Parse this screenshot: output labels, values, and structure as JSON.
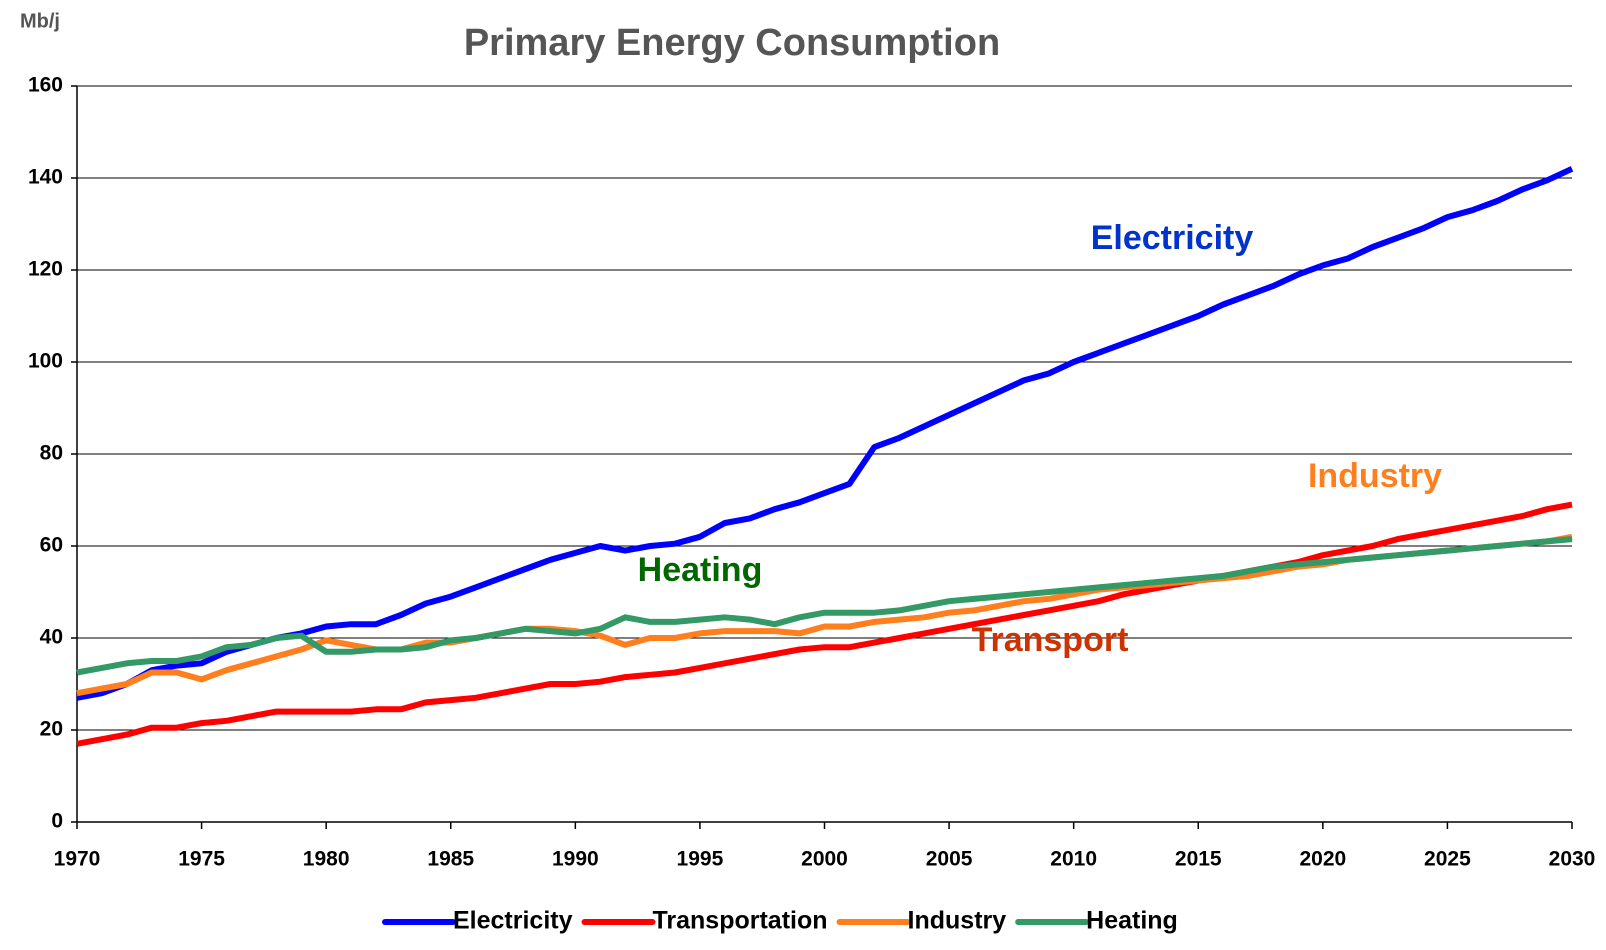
{
  "chart_data": {
    "type": "line",
    "title": "Primary Energy Consumption",
    "y_label": "Mb/j",
    "x": [
      1970,
      1971,
      1972,
      1973,
      1974,
      1975,
      1976,
      1977,
      1978,
      1979,
      1980,
      1981,
      1982,
      1983,
      1984,
      1985,
      1986,
      1987,
      1988,
      1989,
      1990,
      1991,
      1992,
      1993,
      1994,
      1995,
      1996,
      1997,
      1998,
      1999,
      2000,
      2001,
      2002,
      2003,
      2004,
      2005,
      2006,
      2007,
      2008,
      2009,
      2010,
      2011,
      2012,
      2013,
      2014,
      2015,
      2016,
      2017,
      2018,
      2019,
      2020,
      2021,
      2022,
      2023,
      2024,
      2025,
      2026,
      2027,
      2028,
      2029,
      2030
    ],
    "series": [
      {
        "name": "Electricity",
        "color": "#0000ff",
        "values": [
          27,
          28,
          30,
          33,
          34,
          34.5,
          37,
          38.5,
          40,
          41,
          42.5,
          43,
          43,
          45,
          47.5,
          49,
          51,
          53,
          55,
          57,
          58.5,
          60,
          59,
          60,
          60.5,
          62,
          65,
          66,
          68,
          69.5,
          71.5,
          73.5,
          81.5,
          83.5,
          86,
          88.5,
          91,
          93.5,
          96,
          97.5,
          100,
          102,
          104,
          106,
          108,
          110,
          112.5,
          114.5,
          116.5,
          119,
          121,
          122.5,
          125,
          127,
          129,
          131.5,
          133,
          135,
          137.5,
          139.5,
          142
        ]
      },
      {
        "name": "Transportation",
        "color": "#ff0000",
        "values": [
          17,
          18,
          19,
          20.5,
          20.5,
          21.5,
          22,
          23,
          24,
          24,
          24,
          24,
          24.5,
          24.5,
          26,
          26.5,
          27,
          28,
          29,
          30,
          30,
          30.5,
          31.5,
          32,
          32.5,
          33.5,
          34.5,
          35.5,
          36.5,
          37.5,
          38,
          38,
          39,
          40,
          41,
          42,
          43,
          44,
          45,
          46,
          47,
          48,
          49.5,
          50.5,
          51.5,
          52.5,
          53.5,
          54.5,
          55.5,
          56.5,
          58,
          59,
          60,
          61.5,
          62.5,
          63.5,
          64.5,
          65.5,
          66.5,
          68,
          69
        ]
      },
      {
        "name": "Industry",
        "color": "#ff7f1f",
        "values": [
          28,
          29,
          30,
          32.5,
          32.5,
          31,
          33,
          34.5,
          36,
          37.5,
          39.5,
          38.5,
          37.5,
          37.5,
          39,
          39,
          40,
          41,
          42,
          42,
          41.5,
          40.5,
          38.5,
          40,
          40,
          41,
          41.5,
          41.5,
          41.5,
          41,
          42.5,
          42.5,
          43.5,
          44,
          44.5,
          45.5,
          46,
          47,
          48,
          48.5,
          49.5,
          50.5,
          51,
          51.5,
          52,
          52.5,
          53,
          53.5,
          54.5,
          55.5,
          56,
          57,
          57.5,
          58,
          58.5,
          59,
          59.5,
          60,
          60.5,
          61,
          62
        ]
      },
      {
        "name": "Heating",
        "color": "#339966",
        "values": [
          32.5,
          33.5,
          34.5,
          35,
          35,
          36,
          38,
          38.5,
          40,
          40.5,
          37,
          37,
          37.5,
          37.5,
          38,
          39.5,
          40,
          41,
          42,
          41.5,
          41,
          42,
          44.5,
          43.5,
          43.5,
          44,
          44.5,
          44,
          43,
          44.5,
          45.5,
          45.5,
          45.5,
          46,
          47,
          48,
          48.5,
          49,
          49.5,
          50,
          50.5,
          51,
          51.5,
          52,
          52.5,
          53,
          53.5,
          54.5,
          55.5,
          56,
          56.5,
          57,
          57.5,
          58,
          58.5,
          59,
          59.5,
          60,
          60.5,
          61,
          61.5
        ]
      }
    ],
    "annotations": [
      {
        "text": "Electricity",
        "color": "#0033cc"
      },
      {
        "text": "Industry",
        "color": "#ff7f1f"
      },
      {
        "text": "Heating",
        "color": "#006600"
      },
      {
        "text": "Transport",
        "color": "#cc3300"
      }
    ],
    "xlim": [
      1970,
      2030
    ],
    "xticks": [
      1970,
      1975,
      1980,
      1985,
      1990,
      1995,
      2000,
      2005,
      2010,
      2015,
      2020,
      2025,
      2030
    ],
    "ylim": [
      0,
      160
    ],
    "yticks": [
      0,
      20,
      40,
      60,
      80,
      100,
      120,
      140,
      160
    ],
    "grid": true,
    "legend": "bottom"
  }
}
